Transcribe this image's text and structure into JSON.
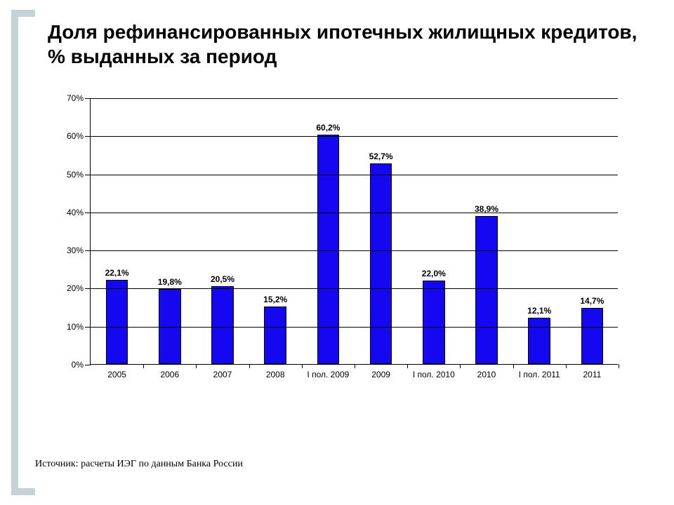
{
  "title": "Доля рефинансированных ипотечных жилищных кредитов, % выданных за период",
  "title_fontsize": 28,
  "title_weight": 700,
  "source": "Источник: расчеты ИЭГ по данным Банка России",
  "source_fontsize": 14,
  "bracket_color": "#c5d3d9",
  "chart": {
    "type": "bar",
    "background_color": "#ffffff",
    "grid_color": "#000000",
    "axis_color": "#000000",
    "bar_color": "#1408f1",
    "bar_border_color": "#000000",
    "bar_width_ratio": 0.42,
    "ylim": [
      0,
      70
    ],
    "ytick_step": 10,
    "y_suffix": "%",
    "value_label_suffix": "%",
    "value_label_fontsize": 12,
    "value_label_weight": 700,
    "axis_label_fontsize": 12,
    "categories": [
      "2005",
      "2006",
      "2007",
      "2008",
      "I пол. 2009",
      "2009",
      "I пол. 2010",
      "2010",
      "I пол. 2011",
      "2011"
    ],
    "values": [
      22.1,
      19.8,
      20.5,
      15.2,
      60.2,
      52.7,
      22.0,
      38.9,
      12.1,
      14.7
    ],
    "value_labels": [
      "22,1%",
      "19,8%",
      "20,5%",
      "15,2%",
      "60,2%",
      "52,7%",
      "22,0%",
      "38,9%",
      "12,1%",
      "14,7%"
    ]
  }
}
